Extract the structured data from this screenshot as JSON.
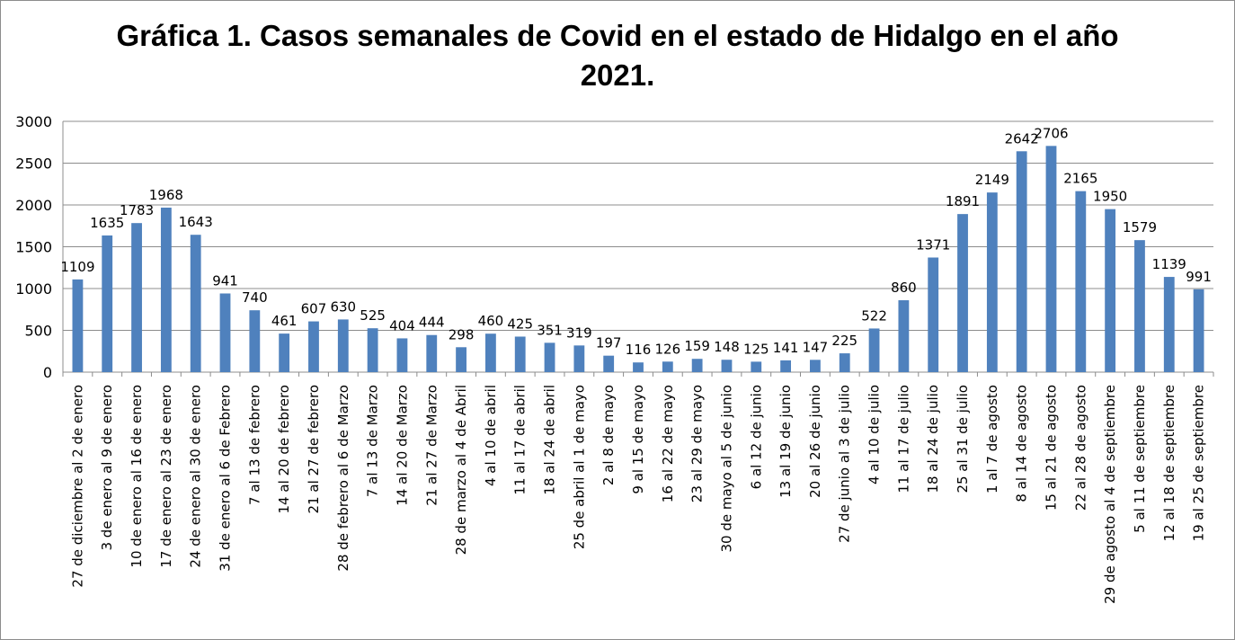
{
  "chart_data": {
    "type": "bar",
    "title_line1": "Gráfica 1. Casos semanales de Covid en el estado de Hidalgo en el año",
    "title_line2": "2021.",
    "xlabel": "",
    "ylabel": "",
    "ylim": [
      0,
      3000
    ],
    "yticks": [
      0,
      500,
      1000,
      1500,
      2000,
      2500,
      3000
    ],
    "grid": true,
    "legend": "none",
    "bar_color": "#4f81bd",
    "categories": [
      "27 de diciembre al 2 de enero",
      "3 de enero al 9 de enero",
      "10 de enero al 16 de enero",
      "17 de enero al 23 de enero",
      "24 de enero al 30 de enero",
      "31 de enero al 6 de Febrero",
      "7 al 13 de febrero",
      "14 al 20 de febrero",
      "21 al 27 de febrero",
      "28 de febrero al 6 de Marzo",
      "7 al 13 de Marzo",
      "14 al 20 de Marzo",
      "21 al 27 de Marzo",
      "28 de marzo al 4 de Abril",
      "4 al 10 de abril",
      "11 al 17 de abril",
      "18 al 24 de abril",
      "25 de abril al 1 de mayo",
      "2 al 8 de mayo",
      "9 al 15 de mayo",
      "16 al 22 de mayo",
      "23 al 29 de mayo",
      "30 de mayo al 5 de junio",
      "6 al 12 de junio",
      "13 al 19 de junio",
      "20 al 26 de junio",
      "27 de junio al 3 de julio",
      "4 al 10 de julio",
      "11 al 17 de julio",
      "18 al 24 de julio",
      "25 al 31 de julio",
      "1 al 7 de agosto",
      "8 al 14 de agosto",
      "15 al 21 de agosto",
      "22 al 28 de agosto",
      "29 de agosto al 4 de septiembre",
      "5 al 11 de septiembre",
      "12 al 18 de septiembre",
      "19 al 25 de septiembre"
    ],
    "values": [
      1109,
      1635,
      1783,
      1968,
      1643,
      941,
      740,
      461,
      607,
      630,
      525,
      404,
      444,
      298,
      460,
      425,
      351,
      319,
      197,
      116,
      126,
      159,
      148,
      125,
      141,
      147,
      225,
      522,
      860,
      1371,
      1891,
      2149,
      2642,
      2706,
      2165,
      1950,
      1579,
      1139,
      991
    ]
  }
}
